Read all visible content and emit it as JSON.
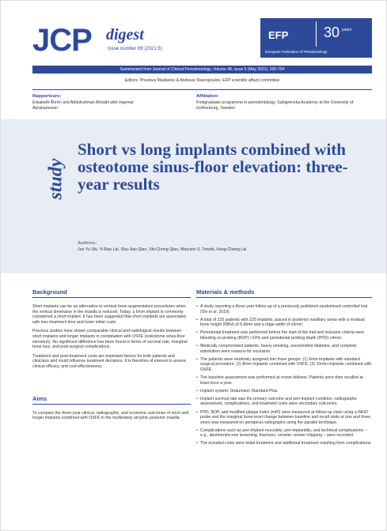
{
  "header": {
    "logo": "JCP",
    "logo_sub": "digest",
    "issue": "Issue number 89 (2021:5)",
    "efp": "EFP",
    "efp_years": "30",
    "efp_years_word": "years",
    "efp_name": "European Federation of Periodontology"
  },
  "source": "Summarised from Journal of Clinical Periodontology, Volume 48, issue 5 (May 2021), 695-704",
  "editors": "Editors: Phoebus Madianos & Andreas Stavropoulos, EFP scientific affairs committee",
  "rapporteurs": {
    "label": "Rapporteurs:",
    "text": "Elisabeth Åhrén and Abdulrahman Alotaibi with Ingemar Abrahamsson"
  },
  "affiliation": {
    "label": "Affiliation:",
    "text": "Postgraduate programme in periodontology, Sahlgrenska Academy at the University of Gothenburg, Sweden"
  },
  "study": "study",
  "title": "Short vs long implants combined with osteotome sinus-floor elevation: three-year results",
  "authors": {
    "label": "Authors:",
    "text": "Jun Yu Shi, Yi-Rao Lai, Shu-Jiao Qian, Shi-Chong Qiao, Maurizio S. Tonetti, Hong-Chang Lai"
  },
  "background": {
    "heading": "Background",
    "paragraphs": [
      "Short implants can be an alternative to vertical bone-augmentation procedures when the vertical dimension in the maxilla is reduced. Today, a 6mm implant is commonly considered a short implant. It has been suggested that short implants are associated with less treatment time and lower initial costs.",
      "Previous studies have shown comparable clinical and radiological results between short implants and longer implants in combination with OSFE (osteotome sinus-floor elevation). No significant difference has been found in terms of survival rate, marginal bone loss, and post-surgical complications.",
      "Treatment and post-treatment costs are important factors for both patients and clinicians and could influence treatment decisions. It is therefore of interest to assess clinical efficacy and cost-effectiveness."
    ]
  },
  "aims": {
    "heading": "Aims",
    "text": "To compare the three-year clinical, radiographic, and economic outcomes of short and longer implants combined with OSFE in the moderately atrophic posterior maxilla."
  },
  "methods": {
    "heading": "Materials & methods",
    "items": [
      "A study reporting a three-year follow-up of a previously published randomised controlled trial (Shi et al. 2019).",
      "A total of 225 patients with 225 implants, placed in posterior maxillary areas with a residual bone height (RBH) of 6-8mm and a ridge width of ≥6mm.",
      "Periodontal treatment was performed before the start of the trial and inclusion criteria were bleeding on probing (BOP) <10% and periodontal probing depth (PPD) ≤4mm.",
      "Medically compromised patients, heavy smoking, uncontrolled diabetes, and complete edentulism were reasons for exclusion.",
      "The patients were randomly assigned into three groups: (1) 6mm implants with standard surgical procedure; (2) 8mm implants combined with OSFE; (3) 10mm implants combined with OSFE.",
      "The baseline assessment was performed at crown delivery. Patients were then recalled at least once a year.",
      "Implant system: Straumann Standard Plus.",
      "Implant survival rate was the primary outcome and peri-implant condition, radiographic assessment, complications, and treatment costs were secondary outcomes.",
      "PPD, BOP, and modified plaque index (mPI) were measured at follow-up visits using a WHO probe and the marginal bone-level change between baseline and recall visits at one and three years was measured on periapical radiographs using the parallel technique.",
      "Complications such as peri-implant mucositis, peri-implantitis, and technical complications – e.g., abutment/screw loosening, fractures, ceramic veneer chipping – were recorded.",
      "The included costs were initial treatment and additional treatment resulting from complications."
    ]
  }
}
